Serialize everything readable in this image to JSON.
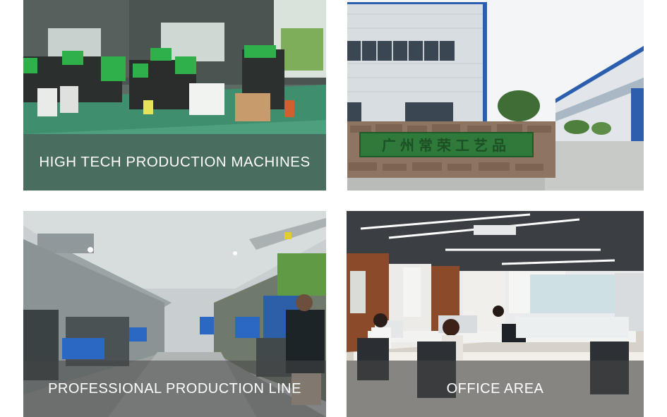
{
  "tiles": [
    {
      "caption": "HIGH TECH PRODUCTION MACHINES",
      "scene": "factory-floor-injection-machines"
    },
    {
      "caption": "",
      "sign": "广州常荣工艺品",
      "scene": "factory-buildings-exterior"
    },
    {
      "caption": "PROFESSIONAL PRODUCTION LINE",
      "scene": "production-line-workshop"
    },
    {
      "caption": "OFFICE AREA",
      "scene": "open-plan-office"
    }
  ],
  "colors": {
    "caption_band": "#464646",
    "caption_text": "#ffffff",
    "machine_green": "#2fb04a",
    "floor_green": "#3f8f6f",
    "sign_green": "#2f7a3a"
  }
}
